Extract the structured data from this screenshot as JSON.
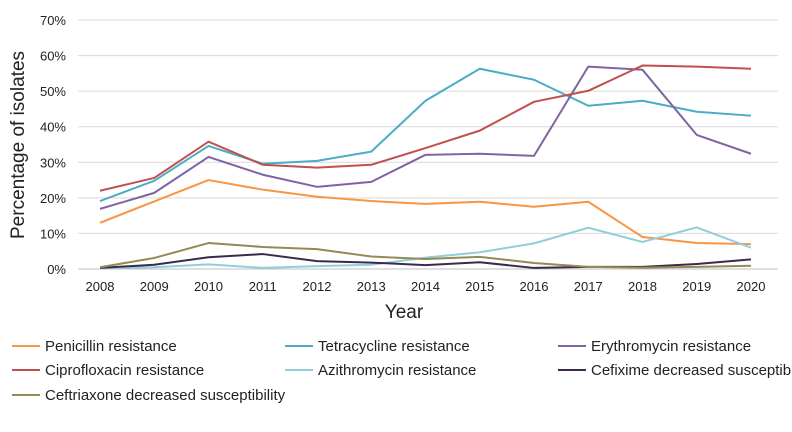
{
  "chart_data": {
    "type": "line",
    "title": "",
    "xlabel": "Year",
    "ylabel": "Percentage of isolates",
    "ylim": [
      0,
      70
    ],
    "yticks": [
      "0%",
      "10%",
      "20%",
      "30%",
      "40%",
      "50%",
      "60%",
      "70%"
    ],
    "grid": "horizontal",
    "legend_placement": "bottom",
    "x": [
      "2008",
      "2009",
      "2010",
      "2011",
      "2012",
      "2013",
      "2014",
      "2015",
      "2016",
      "2017",
      "2018",
      "2019",
      "2020"
    ],
    "series": [
      {
        "name": "Penicillin resistance",
        "color": "#f79646",
        "values": [
          13,
          19,
          25,
          22.3,
          20.3,
          19.1,
          18.3,
          18.9,
          17.5,
          18.9,
          9,
          7.3,
          7
        ]
      },
      {
        "name": "Tetracycline resistance",
        "color": "#4bacc6",
        "values": [
          19.1,
          24.8,
          34.6,
          29.6,
          30.4,
          33,
          47.3,
          56.3,
          53.2,
          45.9,
          47.3,
          44.2,
          43.1
        ]
      },
      {
        "name": "Erythromycin resistance",
        "color": "#8064a2",
        "values": [
          16.9,
          21.4,
          31.5,
          26.5,
          23.1,
          24.5,
          32.1,
          32.4,
          31.8,
          56.9,
          56,
          37.7,
          32.4
        ]
      },
      {
        "name": "Ciprofloxacin resistance",
        "color": "#c0504d",
        "values": [
          22,
          25.6,
          35.8,
          29.3,
          28.5,
          29.3,
          34,
          38.9,
          47,
          50.1,
          57.2,
          56.9,
          56.3
        ]
      },
      {
        "name": "Azithromycin resistance",
        "color": "#92cddc",
        "values": [
          0.3,
          0.5,
          1.3,
          0.3,
          0.8,
          1.2,
          3.2,
          4.7,
          7.2,
          11.6,
          7.6,
          11.7,
          6
        ]
      },
      {
        "name": "Cefixime decreased susceptibility",
        "color": "#3b2a4a",
        "values": [
          0.3,
          1.2,
          3.3,
          4.2,
          2.2,
          1.8,
          1.1,
          1.9,
          0.3,
          0.6,
          0.6,
          1.4,
          2.7
        ]
      },
      {
        "name": "Ceftriaxone decreased susceptibility",
        "color": "#948a54",
        "values": [
          0.5,
          3.1,
          7.3,
          6.2,
          5.6,
          3.5,
          2.8,
          3.4,
          1.7,
          0.6,
          0.4,
          0.6,
          0.9
        ]
      }
    ]
  }
}
